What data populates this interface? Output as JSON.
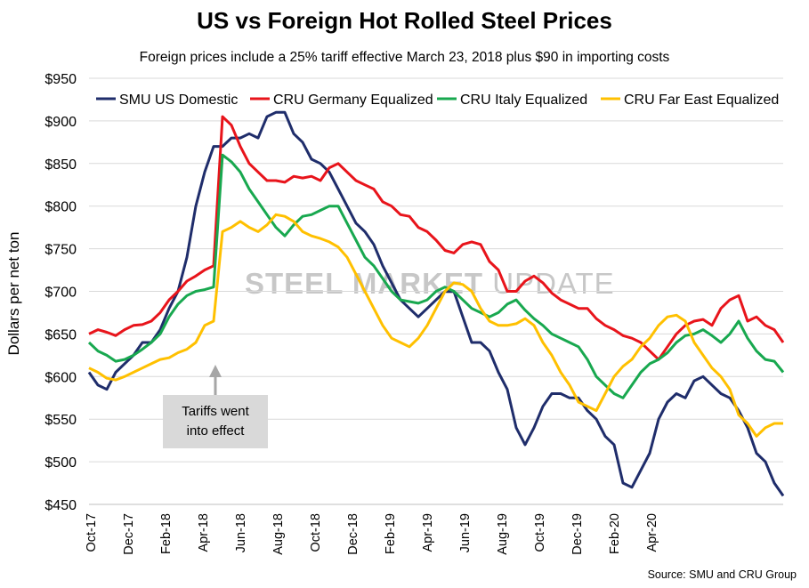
{
  "title": "US vs Foreign Hot Rolled Steel Prices",
  "subtitle": "Foreign prices include a 25% tariff effective March 23, 2018 plus $90 in importing costs",
  "ylabel": "Dollars per net ton",
  "source": "Source: SMU and CRU Group",
  "annotation": {
    "line1": "Tariffs went",
    "line2": "into effect"
  },
  "watermark": {
    "part1": "STEEL MARKET",
    "part2": " UPDATE"
  },
  "chart_data": {
    "type": "line",
    "title": "US vs Foreign Hot Rolled Steel Prices",
    "ylabel": "Dollars per net ton",
    "ylim": [
      450,
      950
    ],
    "yticks": [
      "$450",
      "$500",
      "$550",
      "$600",
      "$650",
      "$700",
      "$750",
      "$800",
      "$850",
      "$900",
      "$950"
    ],
    "xtick_labels": [
      "Oct-17",
      "Dec-17",
      "Feb-18",
      "Apr-18",
      "Jun-18",
      "Aug-18",
      "Oct-18",
      "Dec-18",
      "Feb-19",
      "Apr-19",
      "Jun-19",
      "Aug-19",
      "Oct-19",
      "Dec-19",
      "Feb-20",
      "Apr-20"
    ],
    "x_interval": "biweekly (2 points per month)",
    "grid": "horizontal",
    "legend_position": "top",
    "series": [
      {
        "name": "SMU US Domestic",
        "color": "#1f2d6b",
        "values": [
          605,
          590,
          585,
          605,
          615,
          625,
          640,
          640,
          655,
          680,
          700,
          740,
          800,
          840,
          870,
          870,
          880,
          880,
          885,
          880,
          905,
          910,
          910,
          885,
          875,
          855,
          850,
          840,
          820,
          800,
          780,
          770,
          755,
          730,
          710,
          690,
          680,
          670,
          680,
          690,
          700,
          700,
          670,
          640,
          640,
          630,
          605,
          585,
          540,
          520,
          540,
          565,
          580,
          580,
          575,
          575,
          560,
          550,
          530,
          520,
          475,
          470,
          490,
          510,
          550,
          570,
          580,
          575,
          595,
          600,
          590,
          580,
          575,
          560,
          540,
          510,
          500,
          475,
          460
        ]
      },
      {
        "name": "CRU Germany Equalized",
        "color": "#e8141b",
        "values": [
          650,
          655,
          652,
          648,
          655,
          660,
          661,
          665,
          675,
          690,
          700,
          712,
          718,
          725,
          730,
          905,
          895,
          870,
          850,
          840,
          830,
          830,
          828,
          835,
          833,
          835,
          830,
          845,
          850,
          840,
          830,
          825,
          820,
          805,
          800,
          790,
          788,
          775,
          770,
          760,
          748,
          745,
          755,
          758,
          755,
          735,
          725,
          700,
          700,
          712,
          718,
          710,
          698,
          690,
          685,
          680,
          680,
          668,
          660,
          655,
          648,
          645,
          640,
          630,
          620,
          635,
          650,
          660,
          665,
          667,
          660,
          680,
          690,
          695,
          665,
          670,
          660,
          655,
          640
        ]
      },
      {
        "name": "CRU Italy Equalized",
        "color": "#18a84f",
        "values": [
          640,
          630,
          625,
          618,
          620,
          625,
          632,
          640,
          650,
          670,
          685,
          695,
          700,
          702,
          705,
          860,
          852,
          840,
          820,
          805,
          790,
          775,
          765,
          778,
          788,
          790,
          795,
          800,
          800,
          780,
          760,
          740,
          730,
          715,
          700,
          690,
          688,
          686,
          690,
          700,
          705,
          700,
          690,
          680,
          675,
          670,
          675,
          685,
          690,
          678,
          668,
          660,
          650,
          645,
          640,
          635,
          620,
          600,
          590,
          580,
          575,
          590,
          605,
          615,
          620,
          628,
          640,
          648,
          650,
          655,
          648,
          640,
          650,
          665,
          645,
          630,
          620,
          618,
          605
        ]
      },
      {
        "name": "CRU Far East Equalized",
        "color": "#ffc000",
        "values": [
          610,
          605,
          598,
          596,
          600,
          605,
          610,
          615,
          620,
          622,
          628,
          632,
          640,
          660,
          665,
          770,
          775,
          782,
          775,
          770,
          778,
          790,
          788,
          782,
          770,
          765,
          762,
          758,
          752,
          740,
          720,
          700,
          680,
          660,
          645,
          640,
          635,
          645,
          660,
          680,
          700,
          710,
          708,
          700,
          680,
          665,
          660,
          660,
          662,
          668,
          660,
          640,
          625,
          605,
          590,
          570,
          565,
          560,
          580,
          600,
          612,
          620,
          635,
          645,
          660,
          670,
          672,
          665,
          640,
          625,
          610,
          600,
          585,
          555,
          545,
          530,
          540,
          545,
          545
        ]
      }
    ]
  }
}
